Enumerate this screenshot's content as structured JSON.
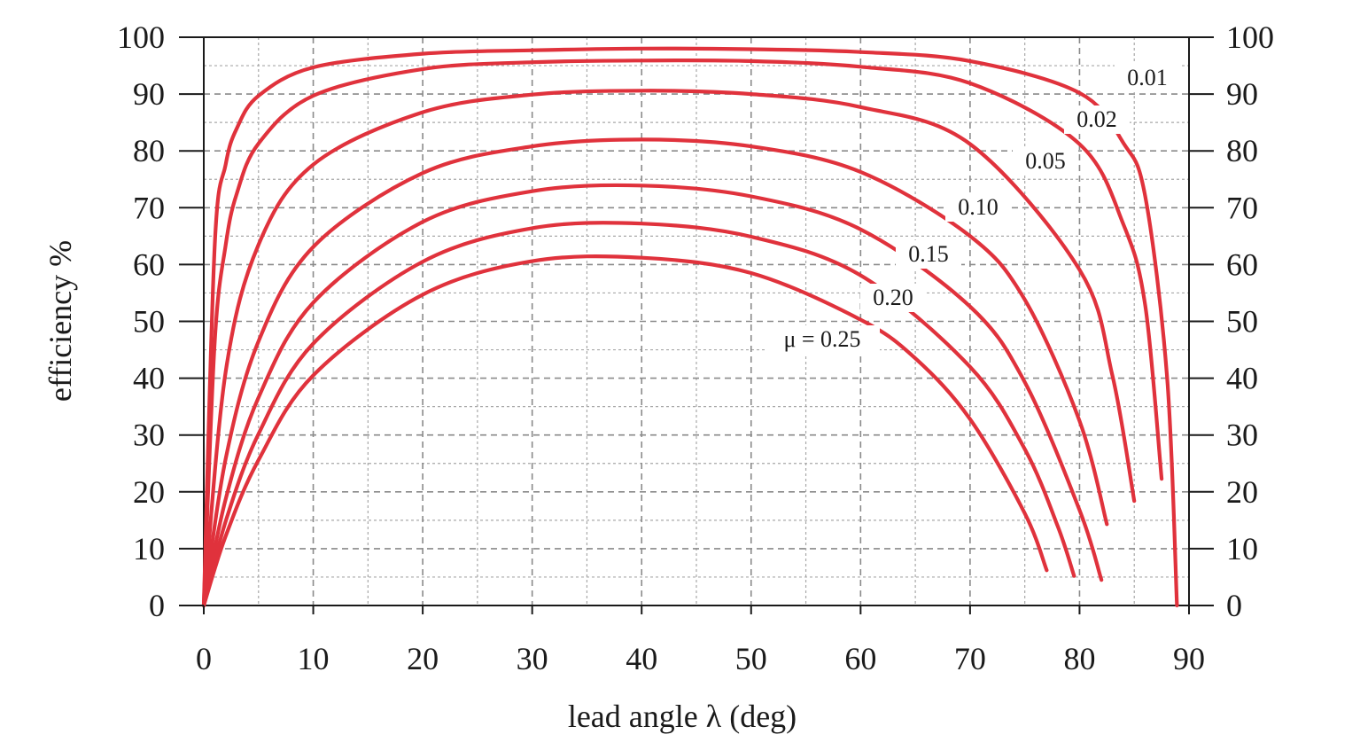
{
  "chart_data": {
    "type": "line",
    "xlabel": "lead angle λ  (deg)",
    "ylabel": "efficiency %",
    "xlim": [
      0,
      90
    ],
    "ylim": [
      0,
      100
    ],
    "x_ticks": [
      "0",
      "10",
      "20",
      "30",
      "40",
      "50",
      "60",
      "70",
      "80",
      "90"
    ],
    "y_ticks": [
      "0",
      "10",
      "20",
      "30",
      "40",
      "50",
      "60",
      "70",
      "80",
      "90",
      "100"
    ],
    "right_y_ticks": [
      "0",
      "10",
      "20",
      "30",
      "40",
      "50",
      "60",
      "70",
      "80",
      "90",
      "100"
    ],
    "grid": true,
    "line_color": "#e0323c",
    "series": [
      {
        "name": "0.01",
        "mu": 0.01,
        "x": [
          0,
          1,
          2,
          3,
          5,
          10,
          20,
          30,
          40,
          50,
          60,
          70,
          80,
          84,
          86,
          88,
          88.9
        ],
        "y": [
          0,
          63.5,
          77.6,
          83.9,
          89.7,
          94.7,
          97.1,
          97.7,
          98.0,
          97.9,
          97.4,
          95.8,
          90.2,
          81.4,
          72.0,
          40.1,
          0
        ]
      },
      {
        "name": "0.02",
        "mu": 0.02,
        "x": [
          0,
          1,
          2,
          3,
          5,
          10,
          20,
          30,
          40,
          50,
          60,
          70,
          80,
          84,
          86,
          87.5
        ],
        "y": [
          0,
          46.5,
          63.4,
          72.4,
          81.3,
          89.7,
          94.4,
          95.6,
          95.9,
          95.8,
          94.8,
          91.9,
          81.2,
          67.1,
          52.8,
          22.3
        ]
      },
      {
        "name": "0.05",
        "mu": 0.05,
        "x": [
          0,
          2,
          5,
          10,
          20,
          30,
          40,
          50,
          60,
          70,
          80,
          83,
          85
        ],
        "y": [
          0,
          41.1,
          63.5,
          77.6,
          86.8,
          89.9,
          90.6,
          90.0,
          87.7,
          81.2,
          59.1,
          40.5,
          18.4
        ]
      },
      {
        "name": "0.10",
        "mu": 0.1,
        "x": [
          0,
          2,
          5,
          10,
          20,
          30,
          40,
          50,
          60,
          70,
          75,
          80,
          82.5
        ],
        "y": [
          0,
          25.8,
          46.5,
          63.1,
          76.1,
          80.8,
          82.0,
          80.8,
          76.3,
          65.0,
          53.8,
          32.5,
          14.3
        ]
      },
      {
        "name": "0.15",
        "mu": 0.15,
        "x": [
          0,
          2,
          5,
          10,
          20,
          30,
          40,
          50,
          60,
          70,
          75,
          80,
          82
        ],
        "y": [
          0,
          18.7,
          36.6,
          53.3,
          67.5,
          72.9,
          73.9,
          72.0,
          66.2,
          52.6,
          39.3,
          16.8,
          4.5
        ]
      },
      {
        "name": "0.20",
        "mu": 0.2,
        "x": [
          0,
          2,
          5,
          10,
          20,
          30,
          40,
          50,
          60,
          70,
          75,
          78,
          79.5
        ],
        "y": [
          0,
          14.8,
          30.2,
          46.1,
          60.5,
          66.4,
          67.2,
          64.9,
          58.1,
          42.0,
          27.5,
          14.0,
          5.2
        ]
      },
      {
        "name": "μ = 0.25",
        "mu": 0.25,
        "x": [
          0,
          2,
          5,
          10,
          20,
          30,
          40,
          50,
          60,
          65,
          70,
          75,
          77
        ],
        "y": [
          0,
          12.2,
          25.6,
          40.5,
          54.7,
          60.6,
          61.2,
          58.5,
          50.3,
          43.5,
          32.8,
          16.2,
          6.2
        ]
      }
    ]
  }
}
